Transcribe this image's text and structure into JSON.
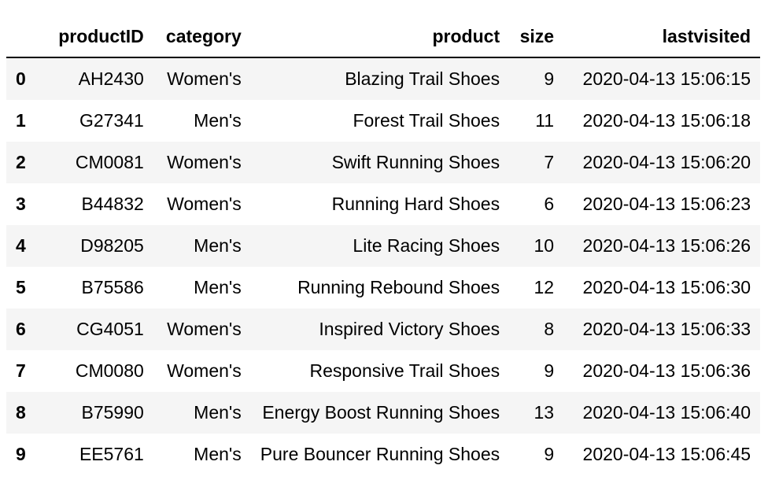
{
  "table": {
    "columns": [
      "",
      "productID",
      "category",
      "product",
      "size",
      "lastvisited"
    ],
    "rows": [
      {
        "index": "0",
        "productID": "AH2430",
        "category": "Women's",
        "product": "Blazing Trail Shoes",
        "size": "9",
        "lastvisited": "2020-04-13 15:06:15"
      },
      {
        "index": "1",
        "productID": "G27341",
        "category": "Men's",
        "product": "Forest Trail Shoes",
        "size": "11",
        "lastvisited": "2020-04-13 15:06:18"
      },
      {
        "index": "2",
        "productID": "CM0081",
        "category": "Women's",
        "product": "Swift Running Shoes",
        "size": "7",
        "lastvisited": "2020-04-13 15:06:20"
      },
      {
        "index": "3",
        "productID": "B44832",
        "category": "Women's",
        "product": "Running Hard Shoes",
        "size": "6",
        "lastvisited": "2020-04-13 15:06:23"
      },
      {
        "index": "4",
        "productID": "D98205",
        "category": "Men's",
        "product": "Lite Racing Shoes",
        "size": "10",
        "lastvisited": "2020-04-13 15:06:26"
      },
      {
        "index": "5",
        "productID": "B75586",
        "category": "Men's",
        "product": "Running Rebound Shoes",
        "size": "12",
        "lastvisited": "2020-04-13 15:06:30"
      },
      {
        "index": "6",
        "productID": "CG4051",
        "category": "Women's",
        "product": "Inspired Victory Shoes",
        "size": "8",
        "lastvisited": "2020-04-13 15:06:33"
      },
      {
        "index": "7",
        "productID": "CM0080",
        "category": "Women's",
        "product": "Responsive Trail Shoes",
        "size": "9",
        "lastvisited": "2020-04-13 15:06:36"
      },
      {
        "index": "8",
        "productID": "B75990",
        "category": "Men's",
        "product": "Energy Boost Running Shoes",
        "size": "13",
        "lastvisited": "2020-04-13 15:06:40"
      },
      {
        "index": "9",
        "productID": "EE5761",
        "category": "Men's",
        "product": "Pure Bouncer Running Shoes",
        "size": "9",
        "lastvisited": "2020-04-13 15:06:45"
      }
    ]
  },
  "colors": {
    "stripe": "#f5f5f5",
    "background": "#ffffff",
    "header_rule": "#000000"
  }
}
